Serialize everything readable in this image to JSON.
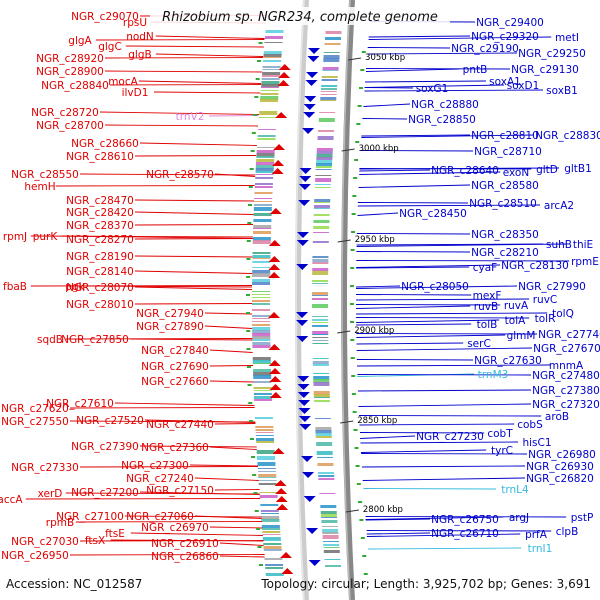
{
  "title": "Rhizobium sp. NGR234, complete genome",
  "accession": "Accession: NC_012587",
  "topology": "Topology: circular; Length: 3,925,702 bp; Genes: 3,691",
  "colors": {
    "left_gene": "#e00000",
    "right_gene": "#0000cc",
    "rna": "#33bbdd",
    "rna_left": "#dd88dd",
    "backbone": "#888888"
  },
  "kbp_ticks": [
    "3050 kbp",
    "3000 kbp",
    "2950 kbp",
    "2900 kbp",
    "2850 kbp",
    "2800 kbp"
  ],
  "left_labels": [
    {
      "text": "NGR_c29070",
      "type": "gene"
    },
    {
      "text": "rpsU",
      "type": "gene"
    },
    {
      "text": "nodN",
      "type": "gene"
    },
    {
      "text": "glgA",
      "type": "gene"
    },
    {
      "text": "glgC",
      "type": "gene"
    },
    {
      "text": "glgB",
      "type": "gene"
    },
    {
      "text": "NGR_c28920",
      "type": "gene"
    },
    {
      "text": "NGR_c28900",
      "type": "gene"
    },
    {
      "text": "mocA",
      "type": "gene"
    },
    {
      "text": "NGR_c28840",
      "type": "gene"
    },
    {
      "text": "ilvD1",
      "type": "gene"
    },
    {
      "text": "NGR_c28720",
      "type": "gene"
    },
    {
      "text": "trnV2",
      "type": "rna"
    },
    {
      "text": "NGR_c28700",
      "type": "gene"
    },
    {
      "text": "NGR_c28660",
      "type": "gene"
    },
    {
      "text": "NGR_c28610",
      "type": "gene"
    },
    {
      "text": "NGR_c28550",
      "type": "gene"
    },
    {
      "text": "NGR_c28570",
      "type": "gene"
    },
    {
      "text": "hemH",
      "type": "gene"
    },
    {
      "text": "NGR_c28470",
      "type": "gene"
    },
    {
      "text": "NGR_c28420",
      "type": "gene"
    },
    {
      "text": "NGR_c28370",
      "type": "gene"
    },
    {
      "text": "rpmJ",
      "type": "gene"
    },
    {
      "text": "purK",
      "type": "gene"
    },
    {
      "text": "NGR_c28270",
      "type": "gene"
    },
    {
      "text": "NGR_c28190",
      "type": "gene"
    },
    {
      "text": "NGR_c28140",
      "type": "gene"
    },
    {
      "text": "fbaB",
      "type": "gene"
    },
    {
      "text": "pgk",
      "type": "gene"
    },
    {
      "text": "NGR_c28070",
      "type": "gene"
    },
    {
      "text": "NGR_c28010",
      "type": "gene"
    },
    {
      "text": "NGR_c27940",
      "type": "gene"
    },
    {
      "text": "NGR_c27890",
      "type": "gene"
    },
    {
      "text": "sqdB",
      "type": "gene"
    },
    {
      "text": "NGR_c27850",
      "type": "gene"
    },
    {
      "text": "NGR_c27840",
      "type": "gene"
    },
    {
      "text": "NGR_c27690",
      "type": "gene"
    },
    {
      "text": "NGR_c27660",
      "type": "gene"
    },
    {
      "text": "NGR_c27610",
      "type": "gene"
    },
    {
      "text": "NGR_c27620",
      "type": "gene"
    },
    {
      "text": "NGR_c27550",
      "type": "gene"
    },
    {
      "text": "NGR_c27520",
      "type": "gene"
    },
    {
      "text": "NGR_c27440",
      "type": "gene"
    },
    {
      "text": "NGR_c27390",
      "type": "gene"
    },
    {
      "text": "NGR_c27360",
      "type": "gene"
    },
    {
      "text": "NGR_c27330",
      "type": "gene"
    },
    {
      "text": "NGR_c27300",
      "type": "gene"
    },
    {
      "text": "NGR_c27240",
      "type": "gene"
    },
    {
      "text": "accA",
      "type": "gene"
    },
    {
      "text": "xerD",
      "type": "gene"
    },
    {
      "text": "NGR_c27200",
      "type": "gene"
    },
    {
      "text": "NGR_c27150",
      "type": "gene"
    },
    {
      "text": "NGR_c27100",
      "type": "gene"
    },
    {
      "text": "NGR_c27060",
      "type": "gene"
    },
    {
      "text": "rpmB",
      "type": "gene"
    },
    {
      "text": "NGR_c26970",
      "type": "gene"
    },
    {
      "text": "ftsE",
      "type": "gene"
    },
    {
      "text": "NGR_c27030",
      "type": "gene"
    },
    {
      "text": "ftsX",
      "type": "gene"
    },
    {
      "text": "NGR_c26910",
      "type": "gene"
    },
    {
      "text": "NGR_c26950",
      "type": "gene"
    },
    {
      "text": "NGR_c26860",
      "type": "gene"
    }
  ],
  "right_labels": [
    {
      "text": "NGR_c29400",
      "type": "gene"
    },
    {
      "text": "NGR_c29320",
      "type": "gene"
    },
    {
      "text": "metI",
      "type": "gene"
    },
    {
      "text": "NGR_c29190",
      "type": "gene"
    },
    {
      "text": "NGR_c29250",
      "type": "gene"
    },
    {
      "text": "pntB",
      "type": "gene"
    },
    {
      "text": "NGR_c29130",
      "type": "gene"
    },
    {
      "text": "soxA1",
      "type": "gene"
    },
    {
      "text": "soxD1",
      "type": "gene"
    },
    {
      "text": "soxG1",
      "type": "gene"
    },
    {
      "text": "soxB1",
      "type": "gene"
    },
    {
      "text": "NGR_c28880",
      "type": "gene"
    },
    {
      "text": "NGR_c28850",
      "type": "gene"
    },
    {
      "text": "NGR_c28810",
      "type": "gene"
    },
    {
      "text": "NGR_c28830",
      "type": "gene"
    },
    {
      "text": "NGR_c28710",
      "type": "gene"
    },
    {
      "text": "NGR_c28640",
      "type": "gene"
    },
    {
      "text": "exoN",
      "type": "gene"
    },
    {
      "text": "gltD",
      "type": "gene"
    },
    {
      "text": "gltB1",
      "type": "gene"
    },
    {
      "text": "NGR_c28580",
      "type": "gene"
    },
    {
      "text": "NGR_c28510",
      "type": "gene"
    },
    {
      "text": "arcA2",
      "type": "gene"
    },
    {
      "text": "NGR_c28450",
      "type": "gene"
    },
    {
      "text": "NGR_c28350",
      "type": "gene"
    },
    {
      "text": "suhB",
      "type": "gene"
    },
    {
      "text": "thiE",
      "type": "gene"
    },
    {
      "text": "NGR_c28210",
      "type": "gene"
    },
    {
      "text": "cyaF",
      "type": "gene"
    },
    {
      "text": "NGR_c28130",
      "type": "gene"
    },
    {
      "text": "rpmE",
      "type": "gene"
    },
    {
      "text": "NGR_c28050",
      "type": "gene"
    },
    {
      "text": "NGR_c27990",
      "type": "gene"
    },
    {
      "text": "mexF",
      "type": "gene"
    },
    {
      "text": "ruvC",
      "type": "gene"
    },
    {
      "text": "ruvB",
      "type": "gene"
    },
    {
      "text": "ruvA",
      "type": "gene"
    },
    {
      "text": "tolQ",
      "type": "gene"
    },
    {
      "text": "tolA",
      "type": "gene"
    },
    {
      "text": "tolR",
      "type": "gene"
    },
    {
      "text": "tolB",
      "type": "gene"
    },
    {
      "text": "glmM",
      "type": "gene"
    },
    {
      "text": "NGR_c27740",
      "type": "gene"
    },
    {
      "text": "serC",
      "type": "gene"
    },
    {
      "text": "NGR_c27670",
      "type": "gene"
    },
    {
      "text": "NGR_c27630",
      "type": "gene"
    },
    {
      "text": "mnmA",
      "type": "gene"
    },
    {
      "text": "trnM3",
      "type": "rna"
    },
    {
      "text": "NGR_c27480",
      "type": "gene"
    },
    {
      "text": "NGR_c27380",
      "type": "gene"
    },
    {
      "text": "NGR_c27320",
      "type": "gene"
    },
    {
      "text": "aroB",
      "type": "gene"
    },
    {
      "text": "cobS",
      "type": "gene"
    },
    {
      "text": "NGR_c27230",
      "type": "gene"
    },
    {
      "text": "cobT",
      "type": "gene"
    },
    {
      "text": "hisC1",
      "type": "gene"
    },
    {
      "text": "tyrC",
      "type": "gene"
    },
    {
      "text": "NGR_c26980",
      "type": "gene"
    },
    {
      "text": "NGR_c26930",
      "type": "gene"
    },
    {
      "text": "NGR_c26820",
      "type": "gene"
    },
    {
      "text": "trnL4",
      "type": "rna"
    },
    {
      "text": "NGR_c26750",
      "type": "gene"
    },
    {
      "text": "argJ",
      "type": "gene"
    },
    {
      "text": "pstP",
      "type": "gene"
    },
    {
      "text": "NGR_c26710",
      "type": "gene"
    },
    {
      "text": "prfA",
      "type": "gene"
    },
    {
      "text": "clpB",
      "type": "gene"
    },
    {
      "text": "trnI1",
      "type": "rna"
    }
  ]
}
